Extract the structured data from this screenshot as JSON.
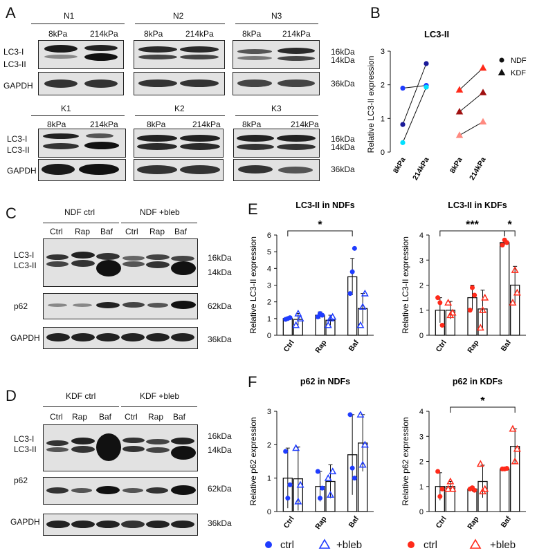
{
  "panels": {
    "A": "A",
    "B": "B",
    "C": "C",
    "D": "D",
    "E": "E",
    "F": "F"
  },
  "blot_a": {
    "groups": [
      "N1",
      "N2",
      "N3",
      "K1",
      "K2",
      "K3"
    ],
    "stiffness": [
      "8kPa",
      "214kPa"
    ],
    "lc3i": "LC3-I",
    "lc3ii": "LC3-II",
    "gapdh": "GAPDH",
    "kda16": "16kDa",
    "kda14": "14kDa",
    "kda36": "36kDa"
  },
  "blot_c": {
    "group1": "NDF ctrl",
    "group2": "NDF +bleb",
    "lanes": [
      "Ctrl",
      "Rap",
      "Baf"
    ],
    "lc3i": "LC3-I",
    "lc3ii": "LC3-II",
    "p62": "p62",
    "gapdh": "GAPDH",
    "kda16": "16kDa",
    "kda14": "14kDa",
    "kda62": "62kDa",
    "kda36": "36kDa"
  },
  "blot_d": {
    "group1": "KDF ctrl",
    "group2": "KDF +bleb",
    "lanes": [
      "Ctrl",
      "Rap",
      "Baf"
    ],
    "lc3i": "LC3-I",
    "lc3ii": "LC3-II",
    "p62": "p62",
    "gapdh": "GAPDH",
    "kda16": "16kDa",
    "kda14": "14kDa",
    "kda62": "62kDa",
    "kda36": "36kDa"
  },
  "legend_f": {
    "ctrl": "ctrl",
    "bleb": "+bleb"
  },
  "colors": {
    "blue": "#1f3cff",
    "cyan": "#00e0ff",
    "red": "#ff2a1a",
    "pink": "#ff8a80",
    "darkred": "#a01010",
    "black": "#111111"
  },
  "chart_data": [
    {
      "id": "B",
      "type": "line",
      "title": "LC3-II",
      "ylabel": "Relative LC3-II expression",
      "categories": [
        "8kPa",
        "214kPa",
        "8kPa",
        "214kPa"
      ],
      "ylim": [
        0,
        3
      ],
      "yticks": [
        0,
        1,
        2,
        3
      ],
      "legend": [
        {
          "name": "NDF",
          "marker": "circle"
        },
        {
          "name": "KDF",
          "marker": "triangle"
        }
      ],
      "pairs": [
        {
          "group": "NDF",
          "marker": "circle",
          "color": "#1f3cff",
          "values": [
            1.9,
            1.98
          ]
        },
        {
          "group": "NDF",
          "marker": "circle",
          "color": "#1a1a99",
          "values": [
            0.82,
            2.63
          ]
        },
        {
          "group": "NDF",
          "marker": "circle",
          "color": "#00e0ff",
          "values": [
            0.28,
            1.93
          ]
        },
        {
          "group": "KDF",
          "marker": "triangle",
          "color": "#ff2a1a",
          "values": [
            1.85,
            2.5
          ]
        },
        {
          "group": "KDF",
          "marker": "triangle",
          "color": "#a01010",
          "values": [
            1.2,
            1.77
          ]
        },
        {
          "group": "KDF",
          "marker": "triangle",
          "color": "#ff8a80",
          "values": [
            0.5,
            0.9
          ]
        }
      ]
    },
    {
      "id": "E1",
      "type": "bar",
      "title": "LC3-II in NDFs",
      "ylabel": "Relative LC3-II expression",
      "categories": [
        "Ctrl",
        "Rap",
        "Baf"
      ],
      "ylim": [
        0,
        6
      ],
      "yticks": [
        0,
        1,
        2,
        3,
        4,
        5,
        6
      ],
      "color": "#1f3cff",
      "series": [
        {
          "name": "ctrl",
          "marker": "circle",
          "values": [
            1.0,
            1.2,
            3.5
          ],
          "err": [
            0.08,
            0.2,
            1.1
          ],
          "points": [
            [
              0.95,
              1.0,
              1.05
            ],
            [
              1.1,
              1.3,
              1.2
            ],
            [
              2.5,
              3.8,
              5.2
            ]
          ]
        },
        {
          "name": "+bleb",
          "marker": "triangle",
          "values": [
            0.95,
            0.9,
            1.6
          ],
          "err": [
            0.35,
            0.3,
            0.9
          ],
          "points": [
            [
              0.6,
              1.3,
              1.0
            ],
            [
              0.6,
              1.0,
              1.1
            ],
            [
              0.6,
              1.7,
              2.5
            ]
          ]
        }
      ],
      "sig": [
        {
          "from": "Ctrl-ctrl",
          "to": "Baf-ctrl",
          "label": "*"
        }
      ]
    },
    {
      "id": "E2",
      "type": "bar",
      "title": "LC3-II in KDFs",
      "ylabel": "Relative LC3-II expression",
      "categories": [
        "Ctrl",
        "Rap",
        "Baf"
      ],
      "ylim": [
        0,
        4
      ],
      "yticks": [
        0,
        1,
        2,
        3,
        4
      ],
      "color": "#ff2a1a",
      "series": [
        {
          "name": "ctrl",
          "marker": "circle",
          "values": [
            1.0,
            1.5,
            3.7
          ],
          "err": [
            0.5,
            0.5,
            0.1
          ],
          "points": [
            [
              1.5,
              1.3,
              0.4
            ],
            [
              1.0,
              1.9,
              1.6
            ],
            [
              3.6,
              3.8,
              3.7
            ]
          ]
        },
        {
          "name": "+bleb",
          "marker": "triangle",
          "values": [
            1.0,
            1.05,
            2.0
          ],
          "err": [
            0.35,
            0.75,
            0.75
          ],
          "points": [
            [
              1.3,
              0.8,
              0.9
            ],
            [
              0.3,
              1.0,
              1.5
            ],
            [
              1.3,
              2.6,
              1.7
            ]
          ]
        }
      ],
      "sig": [
        {
          "from": "Ctrl-ctrl",
          "to": "Baf-ctrl",
          "label": "***"
        },
        {
          "from": "Baf-ctrl",
          "to": "Baf-bleb",
          "label": "*"
        }
      ]
    },
    {
      "id": "F1",
      "type": "bar",
      "title": "p62 in NDFs",
      "ylabel": "Relative p62 expression",
      "categories": [
        "Ctrl",
        "Rap",
        "Baf"
      ],
      "ylim": [
        0,
        3
      ],
      "yticks": [
        0,
        1,
        2,
        3
      ],
      "color": "#1f3cff",
      "series": [
        {
          "name": "ctrl",
          "marker": "circle",
          "values": [
            1.0,
            0.75,
            1.7
          ],
          "err": [
            0.9,
            0.45,
            1.2
          ],
          "points": [
            [
              1.8,
              0.4,
              0.8
            ],
            [
              1.2,
              0.4,
              0.7
            ],
            [
              2.9,
              1.3,
              1.0
            ]
          ]
        },
        {
          "name": "+bleb",
          "marker": "triangle",
          "values": [
            0.98,
            0.9,
            2.05
          ],
          "err": [
            0.95,
            0.5,
            0.85
          ],
          "points": [
            [
              1.9,
              0.3,
              0.8
            ],
            [
              1.0,
              0.5,
              1.2
            ],
            [
              2.9,
              1.4,
              2.0
            ]
          ]
        }
      ],
      "sig": []
    },
    {
      "id": "F2",
      "type": "bar",
      "title": "p62 in KDFs",
      "ylabel": "Relative p62 expression",
      "categories": [
        "Ctrl",
        "Rap",
        "Baf"
      ],
      "ylim": [
        0,
        4
      ],
      "yticks": [
        0,
        1,
        2,
        3,
        4
      ],
      "color": "#ff2a1a",
      "series": [
        {
          "name": "ctrl",
          "marker": "circle",
          "values": [
            1.0,
            0.9,
            1.7
          ],
          "err": [
            0.55,
            0.1,
            0.05
          ],
          "points": [
            [
              1.6,
              0.6,
              0.9
            ],
            [
              0.9,
              0.95,
              0.85
            ],
            [
              1.7,
              1.7,
              1.72
            ]
          ]
        },
        {
          "name": "+bleb",
          "marker": "triangle",
          "values": [
            1.0,
            1.2,
            2.6
          ],
          "err": [
            0.2,
            0.65,
            0.7
          ],
          "points": [
            [
              0.9,
              1.2,
              0.9
            ],
            [
              1.9,
              0.8,
              0.9
            ],
            [
              3.3,
              2.0,
              2.5
            ]
          ]
        }
      ],
      "sig": [
        {
          "from": "Ctrl-bleb",
          "to": "Baf-bleb",
          "label": "*"
        }
      ]
    }
  ]
}
